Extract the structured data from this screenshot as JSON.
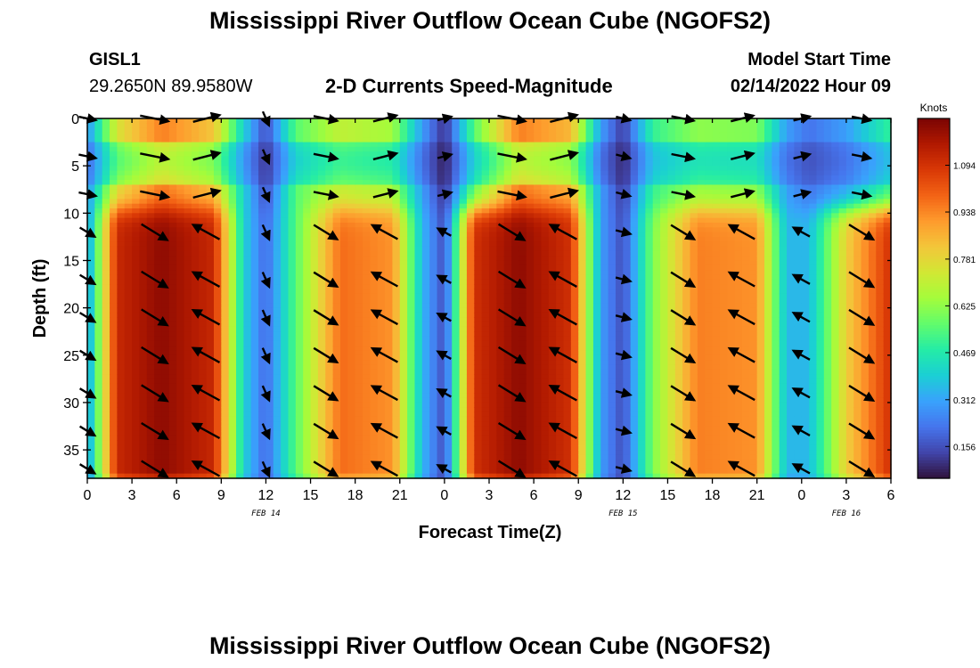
{
  "page": {
    "title": "Mississippi River Outflow Ocean Cube (NGOFS2)",
    "station": "GISL1",
    "coords": "29.2650N  89.9580W",
    "subtitle": "2-D Currents Speed-Magnitude",
    "model_start_label": "Model Start Time",
    "model_start_value": "02/14/2022 Hour 09",
    "footer_title": "Mississippi River Outflow Ocean Cube (NGOFS2)"
  },
  "chart_data": {
    "type": "heatmap",
    "xlabel": "Forecast Time(Z)",
    "ylabel": "Depth (ft)",
    "colorbar_label": "Knots",
    "x_range_hours": [
      0,
      54
    ],
    "y_range_ft": [
      0,
      38
    ],
    "y_ticks": [
      0,
      5,
      10,
      15,
      20,
      25,
      30,
      35
    ],
    "x_ticks": [
      "0",
      "3",
      "6",
      "9",
      "12",
      "15",
      "18",
      "21",
      "0",
      "3",
      "6",
      "9",
      "12",
      "15",
      "18",
      "21",
      "0",
      "3",
      "6"
    ],
    "date_labels": [
      {
        "text": "FEB 14",
        "hour": 12
      },
      {
        "text": "FEB 15",
        "hour": 36
      },
      {
        "text": "FEB 16",
        "hour": 51
      }
    ],
    "colorbar_ticks": [
      "0.156",
      "0.312",
      "0.469",
      "0.625",
      "0.781",
      "0.938",
      "1.094"
    ],
    "colorbar_range": [
      0.05,
      1.25
    ],
    "colors": [
      "#30123b",
      "#4145ab",
      "#4675ed",
      "#39a2fc",
      "#1bcfd4",
      "#24eca6",
      "#61fc6c",
      "#a4fc3b",
      "#d1e834",
      "#f3c63a",
      "#fe9b2d",
      "#f36315",
      "#d93806",
      "#b11901",
      "#7a0403"
    ],
    "speed_phases": [
      {
        "t": 0,
        "surface": 0.28,
        "subsurface": 0.28
      },
      {
        "t": 2,
        "surface": 0.75,
        "subsurface": 1.12
      },
      {
        "t": 5,
        "surface": 0.95,
        "subsurface": 1.22
      },
      {
        "t": 8.5,
        "surface": 0.82,
        "subsurface": 1.12
      },
      {
        "t": 10.5,
        "surface": 0.4,
        "subsurface": 0.4
      },
      {
        "t": 12,
        "surface": 0.15,
        "subsurface": 0.2
      },
      {
        "t": 14,
        "surface": 0.55,
        "subsurface": 0.55
      },
      {
        "t": 17,
        "surface": 0.7,
        "subsurface": 0.98
      },
      {
        "t": 20.5,
        "surface": 0.65,
        "subsurface": 0.92
      },
      {
        "t": 22.5,
        "surface": 0.3,
        "subsurface": 0.35
      },
      {
        "t": 24,
        "surface": 0.1,
        "subsurface": 0.15
      },
      {
        "t": 26,
        "surface": 0.55,
        "subsurface": 1.1
      },
      {
        "t": 29,
        "surface": 0.95,
        "subsurface": 1.22
      },
      {
        "t": 32.5,
        "surface": 0.85,
        "subsurface": 1.1
      },
      {
        "t": 34.5,
        "surface": 0.3,
        "subsurface": 0.3
      },
      {
        "t": 36,
        "surface": 0.12,
        "subsurface": 0.15
      },
      {
        "t": 38,
        "surface": 0.5,
        "subsurface": 0.6
      },
      {
        "t": 41,
        "surface": 0.62,
        "subsurface": 0.95
      },
      {
        "t": 45,
        "surface": 0.6,
        "subsurface": 0.92
      },
      {
        "t": 47,
        "surface": 0.3,
        "subsurface": 0.35
      },
      {
        "t": 48.5,
        "surface": 0.22,
        "subsurface": 0.35
      },
      {
        "t": 51,
        "surface": 0.3,
        "subsurface": 0.8
      },
      {
        "t": 54,
        "surface": 0.5,
        "subsurface": 1.1
      }
    ],
    "vector_depths_ft": [
      0,
      4,
      8,
      12,
      17,
      21,
      25,
      29,
      33,
      37
    ],
    "vector_times_hours": [
      0,
      4.5,
      8,
      12,
      16,
      20,
      24,
      28.5,
      32,
      36,
      40,
      44,
      48,
      52
    ],
    "vector_direction": "ebb flow toward southeast, flood flow toward northwest"
  }
}
